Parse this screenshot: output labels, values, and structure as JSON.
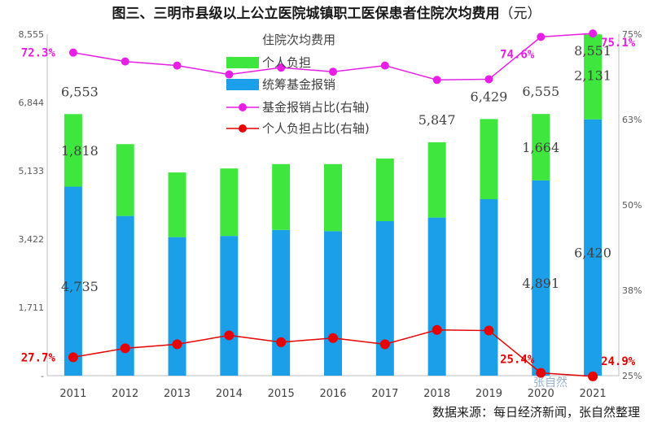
{
  "title": "图三、三明市县级以上公立医院城镇职工医保患者住院次均费用",
  "title_unit": "（元）",
  "source": "数据来源：每日经济新闻，张自然整理",
  "watermark": "张自然",
  "colors": {
    "fund": "#1a9fe8",
    "personal": "#3ee63e",
    "fund_ratio": "#e61ee6",
    "personal_ratio": "#e60000",
    "axis": "#bfbfbf"
  },
  "chart_data": {
    "type": "bar",
    "stacked": true,
    "categories": [
      "2011",
      "2012",
      "2013",
      "2014",
      "2015",
      "2016",
      "2017",
      "2018",
      "2019",
      "2020",
      "2021"
    ],
    "legend_title": "住院次均费用",
    "legend_placement": "top-center",
    "series": [
      {
        "name": "统筹基金报销",
        "values": [
          4735,
          4000,
          3470,
          3500,
          3650,
          3620,
          3870,
          3960,
          4420,
          4891,
          6420
        ]
      },
      {
        "name": "个人负担",
        "values": [
          1818,
          1800,
          1620,
          1690,
          1650,
          1680,
          1570,
          1887,
          2009,
          1664,
          2131
        ]
      }
    ],
    "totals": [
      6553,
      5800,
      5090,
      5190,
      5300,
      5300,
      5440,
      5847,
      6429,
      6555,
      8551
    ],
    "line_series": [
      {
        "name": "基金报销占比(右轴)",
        "values": [
          72.3,
          71.0,
          70.4,
          69.1,
          70.1,
          69.5,
          70.4,
          68.3,
          68.4,
          74.6,
          75.1
        ]
      },
      {
        "name": "个人负担占比(右轴)",
        "values": [
          27.7,
          29.0,
          29.6,
          30.9,
          29.9,
          30.5,
          29.6,
          31.7,
          31.6,
          25.4,
          24.9
        ]
      }
    ],
    "y_left": {
      "ticks": [
        "8,555",
        "6,844",
        "5,133",
        "3,422",
        "1,711",
        "-"
      ],
      "ylim": [
        0,
        8555
      ]
    },
    "y_right": {
      "ticks": [
        "75%",
        "63%",
        "50%",
        "38%",
        "25%"
      ],
      "ylim": [
        25,
        75
      ]
    },
    "value_labels": [
      {
        "year_index": 0,
        "fund": "4,735",
        "personal": "1,818",
        "total": "6,553"
      },
      {
        "year_index": 7,
        "total": "5,847"
      },
      {
        "year_index": 8,
        "total": "6,429"
      },
      {
        "year_index": 9,
        "fund": "4,891",
        "personal": "1,664",
        "total": "6,555"
      },
      {
        "year_index": 10,
        "fund": "6,420",
        "personal": "2,131",
        "total": "8,551"
      }
    ],
    "ratio_labels": [
      {
        "series": 0,
        "year_index": 0,
        "text": "72.3%"
      },
      {
        "series": 0,
        "year_index": 9,
        "text": "74.6%"
      },
      {
        "series": 0,
        "year_index": 10,
        "text": "75.1%"
      },
      {
        "series": 1,
        "year_index": 0,
        "text": "27.7%"
      },
      {
        "series": 1,
        "year_index": 9,
        "text": "25.4%"
      },
      {
        "series": 1,
        "year_index": 10,
        "text": "24.9%"
      }
    ],
    "grid": false
  }
}
